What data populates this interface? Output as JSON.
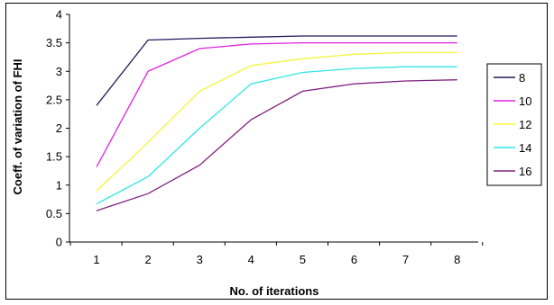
{
  "chart_data": {
    "type": "line",
    "xlabel": "No. of iterations",
    "ylabel": "Coeff. of variation of FHI",
    "categories": [
      "1",
      "2",
      "3",
      "4",
      "5",
      "6",
      "7",
      "8"
    ],
    "yticks": [
      "0",
      "0.5",
      "1",
      "1.5",
      "2",
      "2.5",
      "3",
      "3.5",
      "4"
    ],
    "ylim": [
      0,
      4
    ],
    "grid": false,
    "legend_position": "right",
    "series": [
      {
        "name": "8",
        "color": "#1c1c5c",
        "values": [
          2.4,
          3.55,
          3.58,
          3.6,
          3.62,
          3.62,
          3.62,
          3.62
        ]
      },
      {
        "name": "10",
        "color": "#e020e0",
        "values": [
          1.32,
          3.0,
          3.4,
          3.48,
          3.5,
          3.5,
          3.5,
          3.5
        ]
      },
      {
        "name": "12",
        "color": "#f5f53a",
        "values": [
          0.9,
          1.75,
          2.65,
          3.1,
          3.22,
          3.3,
          3.33,
          3.33
        ]
      },
      {
        "name": "14",
        "color": "#2ee6e6",
        "values": [
          0.67,
          1.15,
          2.0,
          2.78,
          2.98,
          3.05,
          3.08,
          3.08
        ]
      },
      {
        "name": "16",
        "color": "#802080",
        "values": [
          0.55,
          0.85,
          1.35,
          2.15,
          2.65,
          2.78,
          2.83,
          2.85
        ]
      }
    ]
  }
}
